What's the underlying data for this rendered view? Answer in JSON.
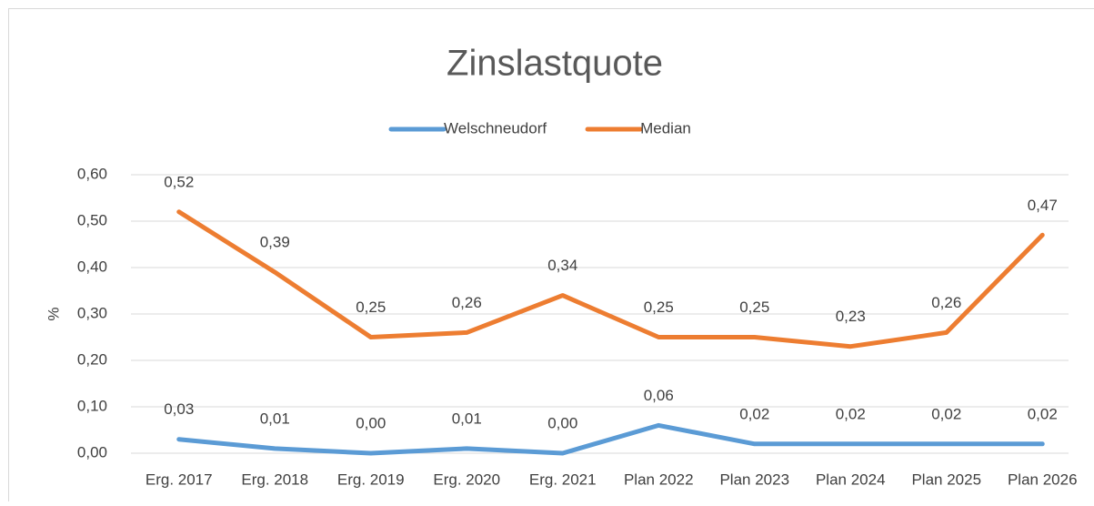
{
  "chart_data": {
    "type": "line",
    "title": "Zinslastquote",
    "y_label": "%",
    "categories": [
      "Erg. 2017",
      "Erg. 2018",
      "Erg. 2019",
      "Erg. 2020",
      "Erg. 2021",
      "Plan 2022",
      "Plan 2023",
      "Plan 2024",
      "Plan 2025",
      "Plan 2026"
    ],
    "series": [
      {
        "name": "Welschneudorf",
        "color": "#5b9bd5",
        "values": [
          0.03,
          0.01,
          0.0,
          0.01,
          0.0,
          0.06,
          0.02,
          0.02,
          0.02,
          0.02
        ],
        "value_labels": [
          "0,03",
          "0,01",
          "0,00",
          "0,01",
          "0,00",
          "0,06",
          "0,02",
          "0,02",
          "0,02",
          "0,02"
        ]
      },
      {
        "name": "Median",
        "color": "#ed7d31",
        "values": [
          0.52,
          0.39,
          0.25,
          0.26,
          0.34,
          0.25,
          0.25,
          0.23,
          0.26,
          0.47
        ],
        "value_labels": [
          "0,52",
          "0,39",
          "0,25",
          "0,26",
          "0,34",
          "0,25",
          "0,25",
          "0,23",
          "0,26",
          "0,47"
        ]
      }
    ],
    "ylim": [
      0,
      0.6
    ],
    "yticks": [
      {
        "value": 0,
        "label": "0,00"
      },
      {
        "value": 0.1,
        "label": "0,10"
      },
      {
        "value": 0.2,
        "label": "0,20"
      },
      {
        "value": 0.3,
        "label": "0,30"
      },
      {
        "value": 0.4,
        "label": "0,40"
      },
      {
        "value": 0.5,
        "label": "0,50"
      },
      {
        "value": 0.6,
        "label": "0,60"
      }
    ],
    "grid": true,
    "legend": "top"
  }
}
